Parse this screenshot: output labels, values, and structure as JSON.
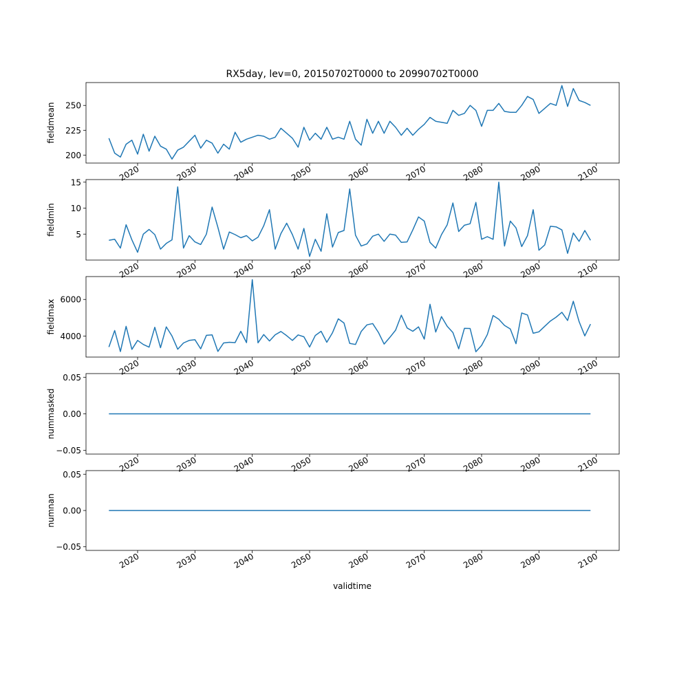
{
  "figure_title": "RX5day, lev=0, 20150702T0000 to 20990702T0000",
  "line_color": "#1f77b4",
  "x_axis": {
    "label": "validtime",
    "ticks": [
      "2020",
      "2030",
      "2040",
      "2050",
      "2060",
      "2070",
      "2080",
      "2090",
      "2100"
    ],
    "range": [
      2011,
      2104
    ]
  },
  "chart_data": [
    {
      "type": "line",
      "ylabel": "fieldmean",
      "ylim": [
        192,
        273
      ],
      "yticks": [
        "200",
        "225",
        "250"
      ],
      "ytick_values": [
        200,
        225,
        250
      ],
      "x": [
        2015,
        2016,
        2017,
        2018,
        2019,
        2020,
        2021,
        2022,
        2023,
        2024,
        2025,
        2026,
        2027,
        2028,
        2029,
        2030,
        2031,
        2032,
        2033,
        2034,
        2035,
        2036,
        2037,
        2038,
        2039,
        2040,
        2041,
        2042,
        2043,
        2044,
        2045,
        2046,
        2047,
        2048,
        2049,
        2050,
        2051,
        2052,
        2053,
        2054,
        2055,
        2056,
        2057,
        2058,
        2059,
        2060,
        2061,
        2062,
        2063,
        2064,
        2065,
        2066,
        2067,
        2068,
        2069,
        2070,
        2071,
        2072,
        2073,
        2074,
        2075,
        2076,
        2077,
        2078,
        2079,
        2080,
        2081,
        2082,
        2083,
        2084,
        2085,
        2086,
        2087,
        2088,
        2089,
        2090,
        2091,
        2092,
        2093,
        2094,
        2095,
        2096,
        2097,
        2098,
        2099
      ],
      "values": [
        217,
        202,
        198,
        211,
        215,
        201,
        221,
        204,
        219,
        209,
        206,
        196,
        205,
        208,
        214,
        220,
        207,
        215,
        212,
        202,
        211,
        206,
        223,
        213,
        216,
        218,
        220,
        219,
        216,
        218,
        227,
        222,
        217,
        208,
        228,
        215,
        222,
        216,
        228,
        216,
        218,
        216,
        234,
        216,
        210,
        236,
        222,
        234,
        222,
        234,
        228,
        220,
        227,
        220,
        226,
        231,
        238,
        234,
        233,
        232,
        245,
        240,
        242,
        250,
        245,
        229,
        245,
        245,
        252,
        244,
        243,
        243,
        250,
        259,
        256,
        242,
        247,
        252,
        250,
        270,
        249,
        267,
        255,
        253,
        250
      ]
    },
    {
      "type": "line",
      "ylabel": "fieldmin",
      "ylim": [
        0,
        15.5
      ],
      "yticks": [
        "5",
        "10",
        "15"
      ],
      "ytick_values": [
        5,
        10,
        15
      ],
      "x": [
        2015,
        2016,
        2017,
        2018,
        2019,
        2020,
        2021,
        2022,
        2023,
        2024,
        2025,
        2026,
        2027,
        2028,
        2029,
        2030,
        2031,
        2032,
        2033,
        2034,
        2035,
        2036,
        2037,
        2038,
        2039,
        2040,
        2041,
        2042,
        2043,
        2044,
        2045,
        2046,
        2047,
        2048,
        2049,
        2050,
        2051,
        2052,
        2053,
        2054,
        2055,
        2056,
        2057,
        2058,
        2059,
        2060,
        2061,
        2062,
        2063,
        2064,
        2065,
        2066,
        2067,
        2068,
        2069,
        2070,
        2071,
        2072,
        2073,
        2074,
        2075,
        2076,
        2077,
        2078,
        2079,
        2080,
        2081,
        2082,
        2083,
        2084,
        2085,
        2086,
        2087,
        2088,
        2089,
        2090,
        2091,
        2092,
        2093,
        2094,
        2095,
        2096,
        2097,
        2098,
        2099
      ],
      "values": [
        3.8,
        4.0,
        2.3,
        6.8,
        3.9,
        1.5,
        5.0,
        5.9,
        4.9,
        2.1,
        3.2,
        3.9,
        14.1,
        2.3,
        4.7,
        3.5,
        3.0,
        5.0,
        10.2,
        6.3,
        2.1,
        5.4,
        4.9,
        4.3,
        4.7,
        3.7,
        4.4,
        6.6,
        9.7,
        2.1,
        5.1,
        7.1,
        4.9,
        2.1,
        6.1,
        0.7,
        4.0,
        1.7,
        8.9,
        2.5,
        5.3,
        5.7,
        13.7,
        4.8,
        2.7,
        3.1,
        4.6,
        5.0,
        3.6,
        5.0,
        4.8,
        3.4,
        3.5,
        5.8,
        8.3,
        7.5,
        3.4,
        2.3,
        4.9,
        6.8,
        11.0,
        5.5,
        6.7,
        7.0,
        11.1,
        4.0,
        4.5,
        4.0,
        15.0,
        2.7,
        7.5,
        6.2,
        2.6,
        4.7,
        9.7,
        1.9,
        2.9,
        6.5,
        6.4,
        5.8,
        1.3,
        5.2,
        3.6,
        5.7,
        3.8
      ]
    },
    {
      "type": "line",
      "ylabel": "fieldmax",
      "ylim": [
        2850,
        7250
      ],
      "yticks": [
        "4000",
        "6000"
      ],
      "ytick_values": [
        4000,
        6000
      ],
      "x": [
        2015,
        2016,
        2017,
        2018,
        2019,
        2020,
        2021,
        2022,
        2023,
        2024,
        2025,
        2026,
        2027,
        2028,
        2029,
        2030,
        2031,
        2032,
        2033,
        2034,
        2035,
        2036,
        2037,
        2038,
        2039,
        2040,
        2041,
        2042,
        2043,
        2044,
        2045,
        2046,
        2047,
        2048,
        2049,
        2050,
        2051,
        2052,
        2053,
        2054,
        2055,
        2056,
        2057,
        2058,
        2059,
        2060,
        2061,
        2062,
        2063,
        2064,
        2065,
        2066,
        2067,
        2068,
        2069,
        2070,
        2071,
        2072,
        2073,
        2074,
        2075,
        2076,
        2077,
        2078,
        2079,
        2080,
        2081,
        2082,
        2083,
        2084,
        2085,
        2086,
        2087,
        2088,
        2089,
        2090,
        2091,
        2092,
        2093,
        2094,
        2095,
        2096,
        2097,
        2098,
        2099
      ],
      "values": [
        3400,
        4300,
        3150,
        4530,
        3270,
        3760,
        3540,
        3390,
        4480,
        3360,
        4500,
        4000,
        3280,
        3620,
        3760,
        3800,
        3300,
        4040,
        4060,
        3160,
        3620,
        3660,
        3640,
        4260,
        3640,
        7080,
        3630,
        4080,
        3730,
        4070,
        4250,
        4020,
        3760,
        4060,
        3960,
        3400,
        4030,
        4260,
        3660,
        4180,
        4940,
        4710,
        3600,
        3540,
        4250,
        4610,
        4680,
        4200,
        3560,
        3930,
        4320,
        5140,
        4440,
        4260,
        4500,
        3830,
        5740,
        4220,
        5060,
        4530,
        4190,
        3300,
        4420,
        4410,
        3140,
        3490,
        4080,
        5120,
        4920,
        4580,
        4390,
        3580,
        5260,
        5150,
        4150,
        4230,
        4530,
        4820,
        5030,
        5300,
        4850,
        5900,
        4790,
        4010,
        4650
      ]
    },
    {
      "type": "line",
      "ylabel": "nummasked",
      "ylim": [
        -0.055,
        0.055
      ],
      "yticks": [
        "−0.05",
        "0.00",
        "0.05"
      ],
      "ytick_values": [
        -0.05,
        0,
        0.05
      ],
      "x": [
        2015,
        2099
      ],
      "values": [
        0,
        0
      ]
    },
    {
      "type": "line",
      "ylabel": "numnan",
      "ylim": [
        -0.055,
        0.055
      ],
      "yticks": [
        "−0.05",
        "0.00",
        "0.05"
      ],
      "ytick_values": [
        -0.05,
        0,
        0.05
      ],
      "x": [
        2015,
        2099
      ],
      "values": [
        0,
        0
      ]
    }
  ]
}
